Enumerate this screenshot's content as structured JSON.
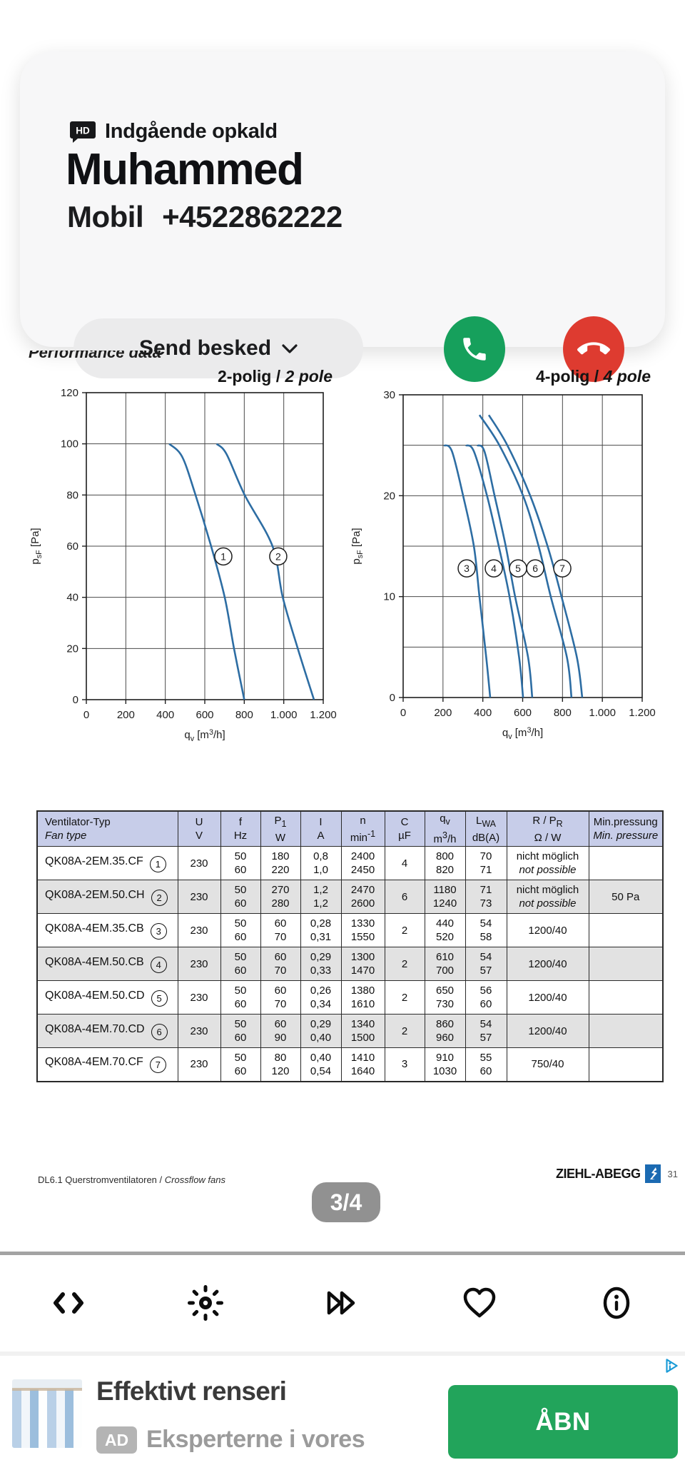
{
  "call_overlay": {
    "title": "Indgående opkald",
    "hd_badge": "HD",
    "caller_name": "Muhammed",
    "number_label": "Mobil",
    "number": "+4522862222",
    "send_message_label": "Send besked",
    "colors": {
      "accept_green": "#16a05c",
      "decline_red": "#de3b30",
      "card_bg": "#f7f7f8"
    }
  },
  "document": {
    "clipped_heading": "Performance data",
    "footer_left_normal": "DL6.1 Querstromventilatoren / ",
    "footer_left_italic": "Crossflow fans",
    "brand": "ZIEHL-ABEGG",
    "brand_page_number": "31"
  },
  "chart_data": [
    {
      "type": "line",
      "title_main": "2-polig / ",
      "title_italic": "2 pole",
      "xlabel": "q_{v} [m^{3}/h]",
      "ylabel": "p_{sF} [Pa]",
      "xlim": [
        0,
        1200
      ],
      "ylim": [
        0,
        120
      ],
      "xticks": [
        0,
        200,
        400,
        600,
        800,
        1000,
        1200
      ],
      "xtick_labels": [
        "0",
        "200",
        "400",
        "600",
        "800",
        "1.000",
        "1.200"
      ],
      "ytick_labels_at": [
        0,
        20,
        40,
        60,
        80,
        100,
        120
      ],
      "grid_x": [
        200,
        400,
        600,
        800,
        1000
      ],
      "grid_y": [
        20,
        40,
        60,
        80,
        100
      ],
      "series": [
        {
          "name": "1",
          "points": [
            [
              420,
              100
            ],
            [
              485,
              95
            ],
            [
              549,
              81
            ],
            [
              632,
              60
            ],
            [
              701,
              40
            ],
            [
              748,
              20
            ],
            [
              800,
              0
            ]
          ],
          "label_at": [
            694,
            56
          ]
        },
        {
          "name": "2",
          "points": [
            [
              660,
              100
            ],
            [
              710,
              96
            ],
            [
              802,
              80
            ],
            [
              943,
              60
            ],
            [
              995,
              40
            ],
            [
              1071,
              20
            ],
            [
              1153,
              0
            ]
          ],
          "label_at": [
            972,
            56
          ]
        }
      ],
      "line_color": "#2d6da3"
    },
    {
      "type": "line",
      "title_main": "4-polig / ",
      "title_italic": "4 pole",
      "xlabel": "q_{v} [m^{3}/h]",
      "ylabel": "p_{sF} [Pa]",
      "xlim": [
        0,
        1200
      ],
      "ylim": [
        0,
        30
      ],
      "xticks": [
        0,
        200,
        400,
        600,
        800,
        1000,
        1200
      ],
      "xtick_labels": [
        "0",
        "200",
        "400",
        "600",
        "800",
        "1.000",
        "1.200"
      ],
      "ytick_labels_at": [
        0,
        10,
        20,
        30
      ],
      "grid_x": [
        200,
        400,
        600,
        800,
        1000
      ],
      "grid_y": [
        5,
        10,
        15,
        20,
        25
      ],
      "series": [
        {
          "name": "3",
          "points": [
            [
              205,
              25
            ],
            [
              245,
              24.4
            ],
            [
              301,
              20
            ],
            [
              355,
              15
            ],
            [
              383,
              10
            ],
            [
              417,
              4
            ],
            [
              437,
              0
            ]
          ],
          "label_at": [
            319,
            12.8
          ]
        },
        {
          "name": "4",
          "points": [
            [
              315,
              25
            ],
            [
              355,
              24.4
            ],
            [
              421,
              20
            ],
            [
              480,
              15
            ],
            [
              534,
              10
            ],
            [
              582,
              4
            ],
            [
              602,
              0
            ]
          ],
          "label_at": [
            455,
            12.8
          ]
        },
        {
          "name": "5",
          "points": [
            [
              372,
              25
            ],
            [
              408,
              24.4
            ],
            [
              459,
              20
            ],
            [
              515,
              15
            ],
            [
              562,
              10
            ],
            [
              627,
              4
            ],
            [
              648,
              0
            ]
          ],
          "label_at": [
            577,
            12.8
          ]
        },
        {
          "name": "6",
          "points": [
            [
              383,
              28
            ],
            [
              483,
              25
            ],
            [
              602,
              20
            ],
            [
              680,
              15
            ],
            [
              741,
              10
            ],
            [
              822,
              4
            ],
            [
              845,
              0
            ]
          ],
          "label_at": [
            663,
            12.8
          ]
        },
        {
          "name": "7",
          "points": [
            [
              430,
              28
            ],
            [
              523,
              25
            ],
            [
              638,
              20
            ],
            [
              725,
              15
            ],
            [
              795,
              10
            ],
            [
              872,
              4
            ],
            [
              899,
              0
            ]
          ],
          "label_at": [
            799,
            12.8
          ]
        }
      ],
      "line_color": "#2d6da3"
    }
  ],
  "table": {
    "headers": [
      {
        "l1": "Ventilator-Typ",
        "l2": "Fan type",
        "italic2": true,
        "align": "left"
      },
      {
        "l1": "U",
        "l2": "V"
      },
      {
        "l1": "f",
        "l2": "Hz"
      },
      {
        "l1": "P_{1}",
        "l2": "W"
      },
      {
        "l1": "I",
        "l2": "A"
      },
      {
        "l1": "n",
        "l2": "min^{-1}"
      },
      {
        "l1": "C",
        "l2": "µF"
      },
      {
        "l1": "q_{v}",
        "l2": "m^{3}/h"
      },
      {
        "l1": "L_{WA}",
        "l2": "dB(A)"
      },
      {
        "l1": "R / P_{R}",
        "l2": "Ω  / W"
      },
      {
        "l1": "Min.pressung",
        "l2": "Min. pressure",
        "italic2": true
      }
    ],
    "rows": [
      {
        "type": "QK08A-2EM.35.CF",
        "num": "1",
        "u": "230",
        "f": [
          "50",
          "60"
        ],
        "p": [
          "180",
          "220"
        ],
        "i": [
          "0,8",
          "1,0"
        ],
        "n": [
          "2400",
          "2450"
        ],
        "c": "4",
        "qv": [
          "800",
          "820"
        ],
        "lwa": [
          "70",
          "71"
        ],
        "r": [
          "nicht möglich",
          "not possible"
        ],
        "r_italic2": true,
        "min": ""
      },
      {
        "type": "QK08A-2EM.50.CH",
        "num": "2",
        "u": "230",
        "f": [
          "50",
          "60"
        ],
        "p": [
          "270",
          "280"
        ],
        "i": [
          "1,2",
          "1,2"
        ],
        "n": [
          "2470",
          "2600"
        ],
        "c": "6",
        "qv": [
          "1180",
          "1240"
        ],
        "lwa": [
          "71",
          "73"
        ],
        "r": [
          "nicht möglich",
          "not possible"
        ],
        "r_italic2": true,
        "min": "50 Pa"
      },
      {
        "type": "QK08A-4EM.35.CB",
        "num": "3",
        "u": "230",
        "f": [
          "50",
          "60"
        ],
        "p": [
          "60",
          "70"
        ],
        "i": [
          "0,28",
          "0,31"
        ],
        "n": [
          "1330",
          "1550"
        ],
        "c": "2",
        "qv": [
          "440",
          "520"
        ],
        "lwa": [
          "54",
          "58"
        ],
        "r": [
          "1200/40"
        ],
        "min": ""
      },
      {
        "type": "QK08A-4EM.50.CB",
        "num": "4",
        "u": "230",
        "f": [
          "50",
          "60"
        ],
        "p": [
          "60",
          "70"
        ],
        "i": [
          "0,29",
          "0,33"
        ],
        "n": [
          "1300",
          "1470"
        ],
        "c": "2",
        "qv": [
          "610",
          "700"
        ],
        "lwa": [
          "54",
          "57"
        ],
        "r": [
          "1200/40"
        ],
        "min": ""
      },
      {
        "type": "QK08A-4EM.50.CD",
        "num": "5",
        "u": "230",
        "f": [
          "50",
          "60"
        ],
        "p": [
          "60",
          "70"
        ],
        "i": [
          "0,26",
          "0,34"
        ],
        "n": [
          "1380",
          "1610"
        ],
        "c": "2",
        "qv": [
          "650",
          "730"
        ],
        "lwa": [
          "56",
          "60"
        ],
        "r": [
          "1200/40"
        ],
        "min": ""
      },
      {
        "type": "QK08A-4EM.70.CD",
        "num": "6",
        "u": "230",
        "f": [
          "50",
          "60"
        ],
        "p": [
          "60",
          "90"
        ],
        "i": [
          "0,29",
          "0,40"
        ],
        "n": [
          "1340",
          "1500"
        ],
        "c": "2",
        "qv": [
          "860",
          "960"
        ],
        "lwa": [
          "54",
          "57"
        ],
        "r": [
          "1200/40"
        ],
        "min": ""
      },
      {
        "type": "QK08A-4EM.70.CF",
        "num": "7",
        "u": "230",
        "f": [
          "50",
          "60"
        ],
        "p": [
          "80",
          "120"
        ],
        "i": [
          "0,40",
          "0,54"
        ],
        "n": [
          "1410",
          "1640"
        ],
        "c": "3",
        "qv": [
          "910",
          "1030"
        ],
        "lwa": [
          "55",
          "60"
        ],
        "r": [
          "750/40"
        ],
        "min": ""
      }
    ]
  },
  "pager": {
    "label": "3/4"
  },
  "toolbar": {
    "icons": [
      "code-icon",
      "brightness-icon",
      "fast-forward-icon",
      "heart-icon",
      "info-icon"
    ]
  },
  "ad": {
    "title": "Effektivt renseri",
    "badge": "AD",
    "subtitle": "Eksperterne i vores",
    "cta_label": "ÅBN",
    "cta_color": "#22a45b",
    "thumbnail": "shirts-on-hangers"
  }
}
